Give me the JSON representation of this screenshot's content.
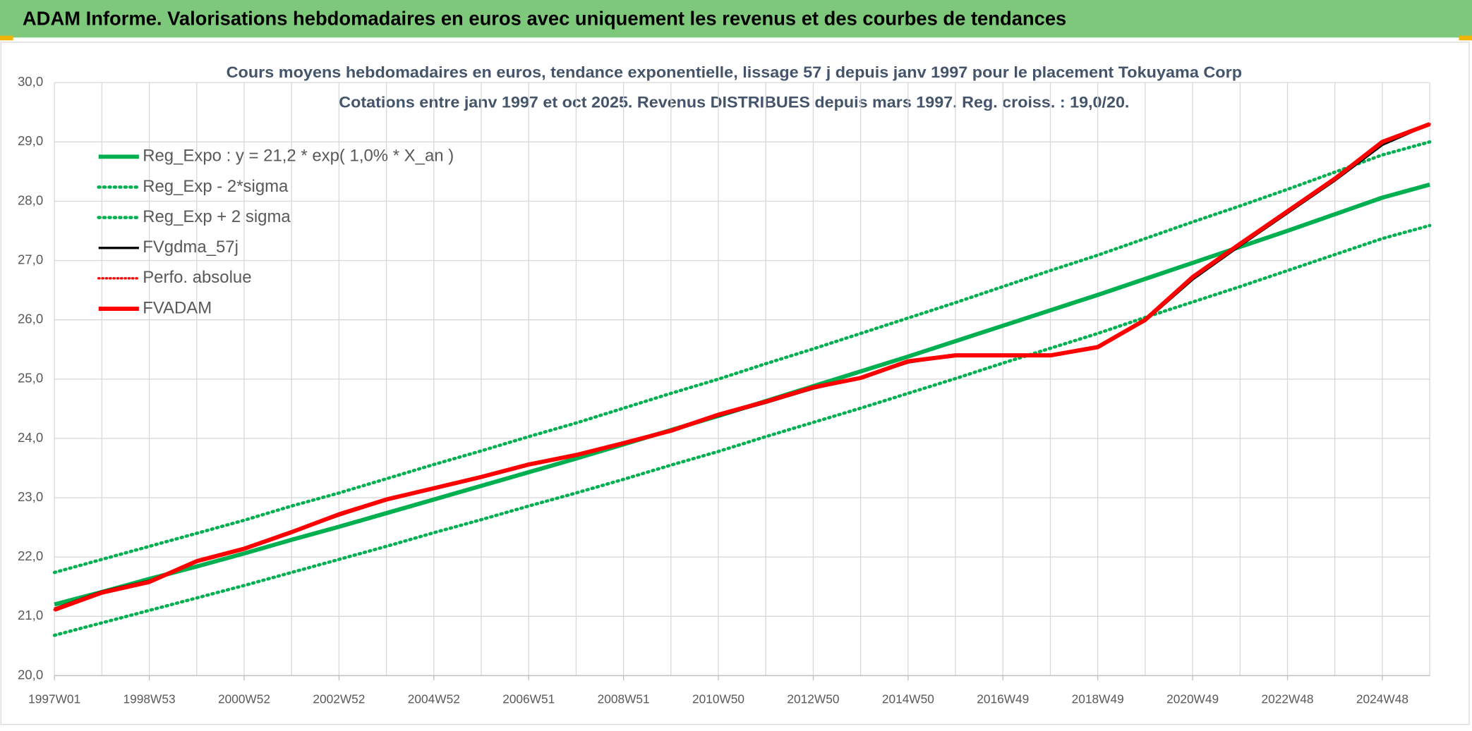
{
  "header": {
    "title": "ADAM Informe. Valorisations hebdomadaires en euros avec uniquement les revenus et des courbes de tendances"
  },
  "chart_data": {
    "type": "line",
    "title": "Cours moyens hebdomadaires en euros, tendance exponentielle, lissage 57 j depuis janv 1997 pour le placement Tokuyama Corp",
    "subtitle": "Cotations entre janv 1997 et oct 2025. Revenus DISTRIBUES depuis mars 1997. Reg. croiss. : 19,0/20.",
    "categories": [
      "1997W01",
      null,
      "1998W53",
      null,
      "2000W52",
      null,
      "2002W52",
      null,
      "2004W52",
      null,
      "2006W51",
      null,
      "2008W51",
      null,
      "2010W50",
      null,
      "2012W50",
      null,
      "2014W50",
      null,
      "2016W49",
      null,
      "2018W49",
      null,
      "2020W49",
      null,
      "2022W48",
      null,
      "2024W48",
      null
    ],
    "ylim": [
      20,
      30
    ],
    "yticks": [
      {
        "value": 20,
        "label": "20,0"
      },
      {
        "value": 21,
        "label": "21,0"
      },
      {
        "value": 22,
        "label": "22,0"
      },
      {
        "value": 23,
        "label": "23,0"
      },
      {
        "value": 24,
        "label": "24,0"
      },
      {
        "value": 25,
        "label": "25,0"
      },
      {
        "value": 26,
        "label": "26,0"
      },
      {
        "value": 27,
        "label": "27,0"
      },
      {
        "value": 28,
        "label": "28,0"
      },
      {
        "value": 29,
        "label": "29,0"
      },
      {
        "value": 30,
        "label": "30,0"
      }
    ],
    "grid": true,
    "legend": "top-left",
    "series": [
      {
        "name": "Reg_Expo : y = 21,2 * exp( 1,0% *  X_an )",
        "color": "#00b050",
        "style": "solid",
        "width": 4.5,
        "values": [
          21.2,
          21.41,
          21.63,
          21.84,
          22.06,
          22.29,
          22.51,
          22.74,
          22.97,
          23.2,
          23.43,
          23.66,
          23.9,
          24.14,
          24.38,
          24.63,
          24.88,
          25.13,
          25.38,
          25.64,
          25.9,
          26.16,
          26.42,
          26.69,
          26.96,
          27.23,
          27.5,
          27.78,
          28.06,
          28.28
        ]
      },
      {
        "name": "Reg_Exp - 2*sigma",
        "color": "#00b050",
        "style": "dotted",
        "width": 3.5,
        "values": [
          20.68,
          20.89,
          21.1,
          21.31,
          21.52,
          21.74,
          21.96,
          22.18,
          22.41,
          22.63,
          22.86,
          23.08,
          23.31,
          23.55,
          23.78,
          24.03,
          24.27,
          24.51,
          24.76,
          25.01,
          25.27,
          25.52,
          25.77,
          26.04,
          26.3,
          26.56,
          26.83,
          27.1,
          27.37,
          27.59
        ]
      },
      {
        "name": "Reg_Exp + 2 sigma",
        "color": "#00b050",
        "style": "dotted",
        "width": 3.5,
        "values": [
          21.74,
          21.96,
          22.18,
          22.4,
          22.62,
          22.86,
          23.08,
          23.32,
          23.56,
          23.79,
          24.03,
          24.26,
          24.51,
          24.76,
          25.0,
          25.26,
          25.51,
          25.77,
          26.03,
          26.29,
          26.56,
          26.83,
          27.09,
          27.37,
          27.65,
          27.92,
          28.2,
          28.49,
          28.78,
          29.0
        ]
      },
      {
        "name": "FVgdma_57j",
        "color": "#000000",
        "style": "solid",
        "width": 2.5,
        "values": [
          21.13,
          21.42,
          21.6,
          21.92,
          22.15,
          22.42,
          22.7,
          22.96,
          23.16,
          23.35,
          23.55,
          23.72,
          23.92,
          24.13,
          24.38,
          24.6,
          24.84,
          25.02,
          25.28,
          25.4,
          25.4,
          25.4,
          25.53,
          25.98,
          26.68,
          27.25,
          27.8,
          28.35,
          28.95,
          29.3
        ]
      },
      {
        "name": "Perfo. absolue",
        "color": "#ff0000",
        "style": "dotted",
        "width": 2.5,
        "values": [
          21.11,
          21.4,
          21.58,
          21.93,
          22.14,
          22.42,
          22.72,
          22.97,
          23.16,
          23.35,
          23.56,
          23.72,
          23.92,
          24.13,
          24.4,
          24.62,
          24.86,
          25.02,
          25.3,
          25.4,
          25.4,
          25.4,
          25.54,
          26.0,
          26.72,
          27.28,
          27.83,
          28.38,
          29.0,
          29.3
        ]
      },
      {
        "name": "FVADAM",
        "color": "#ff0000",
        "style": "solid",
        "width": 4.5,
        "values": [
          21.11,
          21.4,
          21.58,
          21.93,
          22.14,
          22.42,
          22.72,
          22.97,
          23.16,
          23.35,
          23.56,
          23.72,
          23.92,
          24.13,
          24.4,
          24.62,
          24.86,
          25.02,
          25.3,
          25.4,
          25.4,
          25.4,
          25.54,
          26.0,
          26.72,
          27.28,
          27.83,
          28.38,
          29.0,
          29.3
        ]
      }
    ]
  }
}
